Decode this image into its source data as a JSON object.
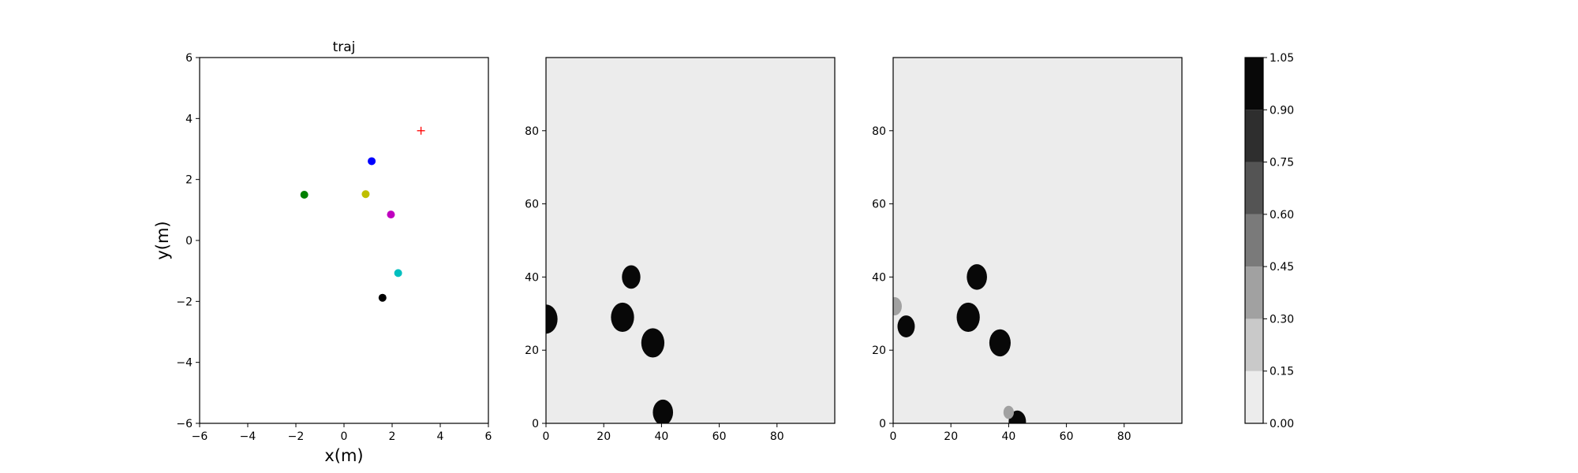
{
  "chart_data": [
    {
      "type": "scatter",
      "title": "traj",
      "xlabel": "x(m)",
      "ylabel": "y(m)",
      "xlim": [
        -6,
        6
      ],
      "ylim": [
        -6,
        6
      ],
      "xticks": [
        -6,
        -4,
        -2,
        0,
        2,
        4,
        6
      ],
      "yticks": [
        -6,
        -4,
        -2,
        0,
        2,
        4,
        6
      ],
      "grid": false,
      "points": [
        {
          "x": 1.15,
          "y": 2.6,
          "color": "#0000ff",
          "marker": "circle"
        },
        {
          "x": -1.65,
          "y": 1.5,
          "color": "#008000",
          "marker": "circle"
        },
        {
          "x": 0.9,
          "y": 1.52,
          "color": "#bfbf00",
          "marker": "circle"
        },
        {
          "x": 1.95,
          "y": 0.85,
          "color": "#bf00bf",
          "marker": "circle"
        },
        {
          "x": 2.25,
          "y": -1.07,
          "color": "#00bfbf",
          "marker": "circle"
        },
        {
          "x": 1.6,
          "y": -1.88,
          "color": "#000000",
          "marker": "circle"
        },
        {
          "x": 3.2,
          "y": 3.6,
          "color": "#ff0000",
          "marker": "plus"
        }
      ]
    },
    {
      "type": "heatmap",
      "title": "",
      "xlim": [
        0,
        100
      ],
      "ylim": [
        0,
        100
      ],
      "xticks": [
        0,
        20,
        40,
        60,
        80
      ],
      "yticks": [
        0,
        20,
        40,
        60,
        80
      ],
      "background_value": 0.05,
      "blobs": [
        {
          "x": 0,
          "y": 28.5,
          "r": 4.0,
          "value": 1.0
        },
        {
          "x": 26.5,
          "y": 29,
          "r": 4.0,
          "value": 1.0
        },
        {
          "x": 29.5,
          "y": 40,
          "r": 3.2,
          "value": 1.0
        },
        {
          "x": 37,
          "y": 22,
          "r": 4.0,
          "value": 1.0
        },
        {
          "x": 40.5,
          "y": 3,
          "r": 3.5,
          "value": 1.0
        }
      ]
    },
    {
      "type": "heatmap",
      "title": "",
      "xlim": [
        0,
        100
      ],
      "ylim": [
        0,
        100
      ],
      "xticks": [
        0,
        20,
        40,
        60,
        80
      ],
      "yticks": [
        0,
        20,
        40,
        60,
        80
      ],
      "background_value": 0.05,
      "blobs": [
        {
          "x": 0.5,
          "y": 32,
          "r": 2.5,
          "value": 0.35
        },
        {
          "x": 4.5,
          "y": 26.5,
          "r": 3.0,
          "value": 0.9
        },
        {
          "x": 26,
          "y": 29,
          "r": 4.0,
          "value": 1.0
        },
        {
          "x": 29,
          "y": 40,
          "r": 3.5,
          "value": 1.0
        },
        {
          "x": 37,
          "y": 22,
          "r": 3.7,
          "value": 1.0
        },
        {
          "x": 43,
          "y": 0.5,
          "r": 3.0,
          "value": 1.0
        },
        {
          "x": 40,
          "y": 3,
          "r": 1.8,
          "value": 0.3
        }
      ]
    },
    {
      "type": "colorbar",
      "range": [
        0,
        1.05
      ],
      "levels": [
        0.0,
        0.15,
        0.3,
        0.45,
        0.6,
        0.75,
        0.9,
        1.05
      ],
      "tick_labels": [
        "0.00",
        "0.15",
        "0.30",
        "0.45",
        "0.60",
        "0.75",
        "0.90",
        "1.05"
      ],
      "colors": [
        "#ececec",
        "#c9c9c9",
        "#a1a1a1",
        "#7a7a7a",
        "#545454",
        "#2e2e2e",
        "#080808"
      ]
    }
  ]
}
